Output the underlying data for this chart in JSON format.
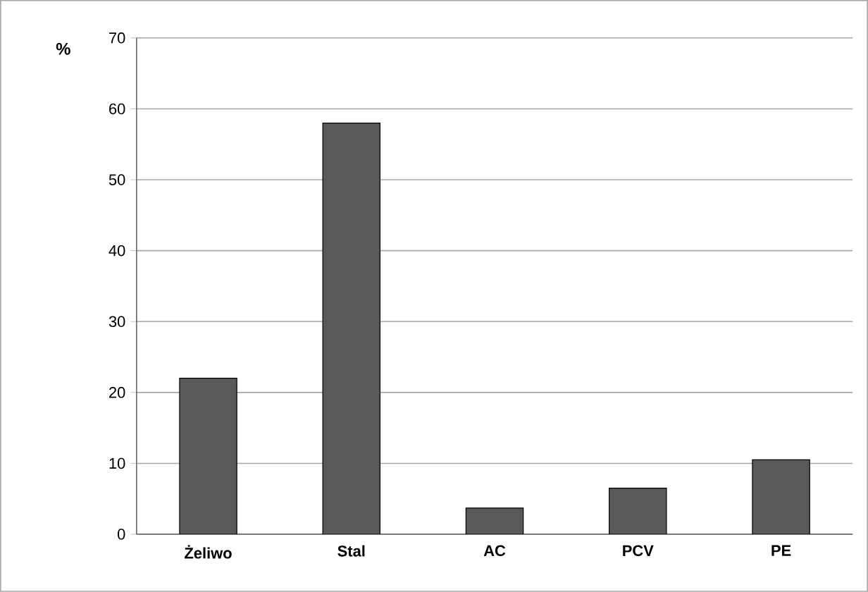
{
  "chart_data": {
    "type": "bar",
    "ylabel": "%",
    "categories": [
      "Żeliwo",
      "Stal",
      "AC",
      "PCV",
      "PE"
    ],
    "values": [
      22,
      58,
      3.7,
      6.5,
      10.5
    ],
    "color": "#595959",
    "ylim": [
      0,
      70
    ],
    "yticks": [
      0,
      10,
      20,
      30,
      40,
      50,
      60,
      70
    ],
    "grid": "y",
    "legend": false
  }
}
